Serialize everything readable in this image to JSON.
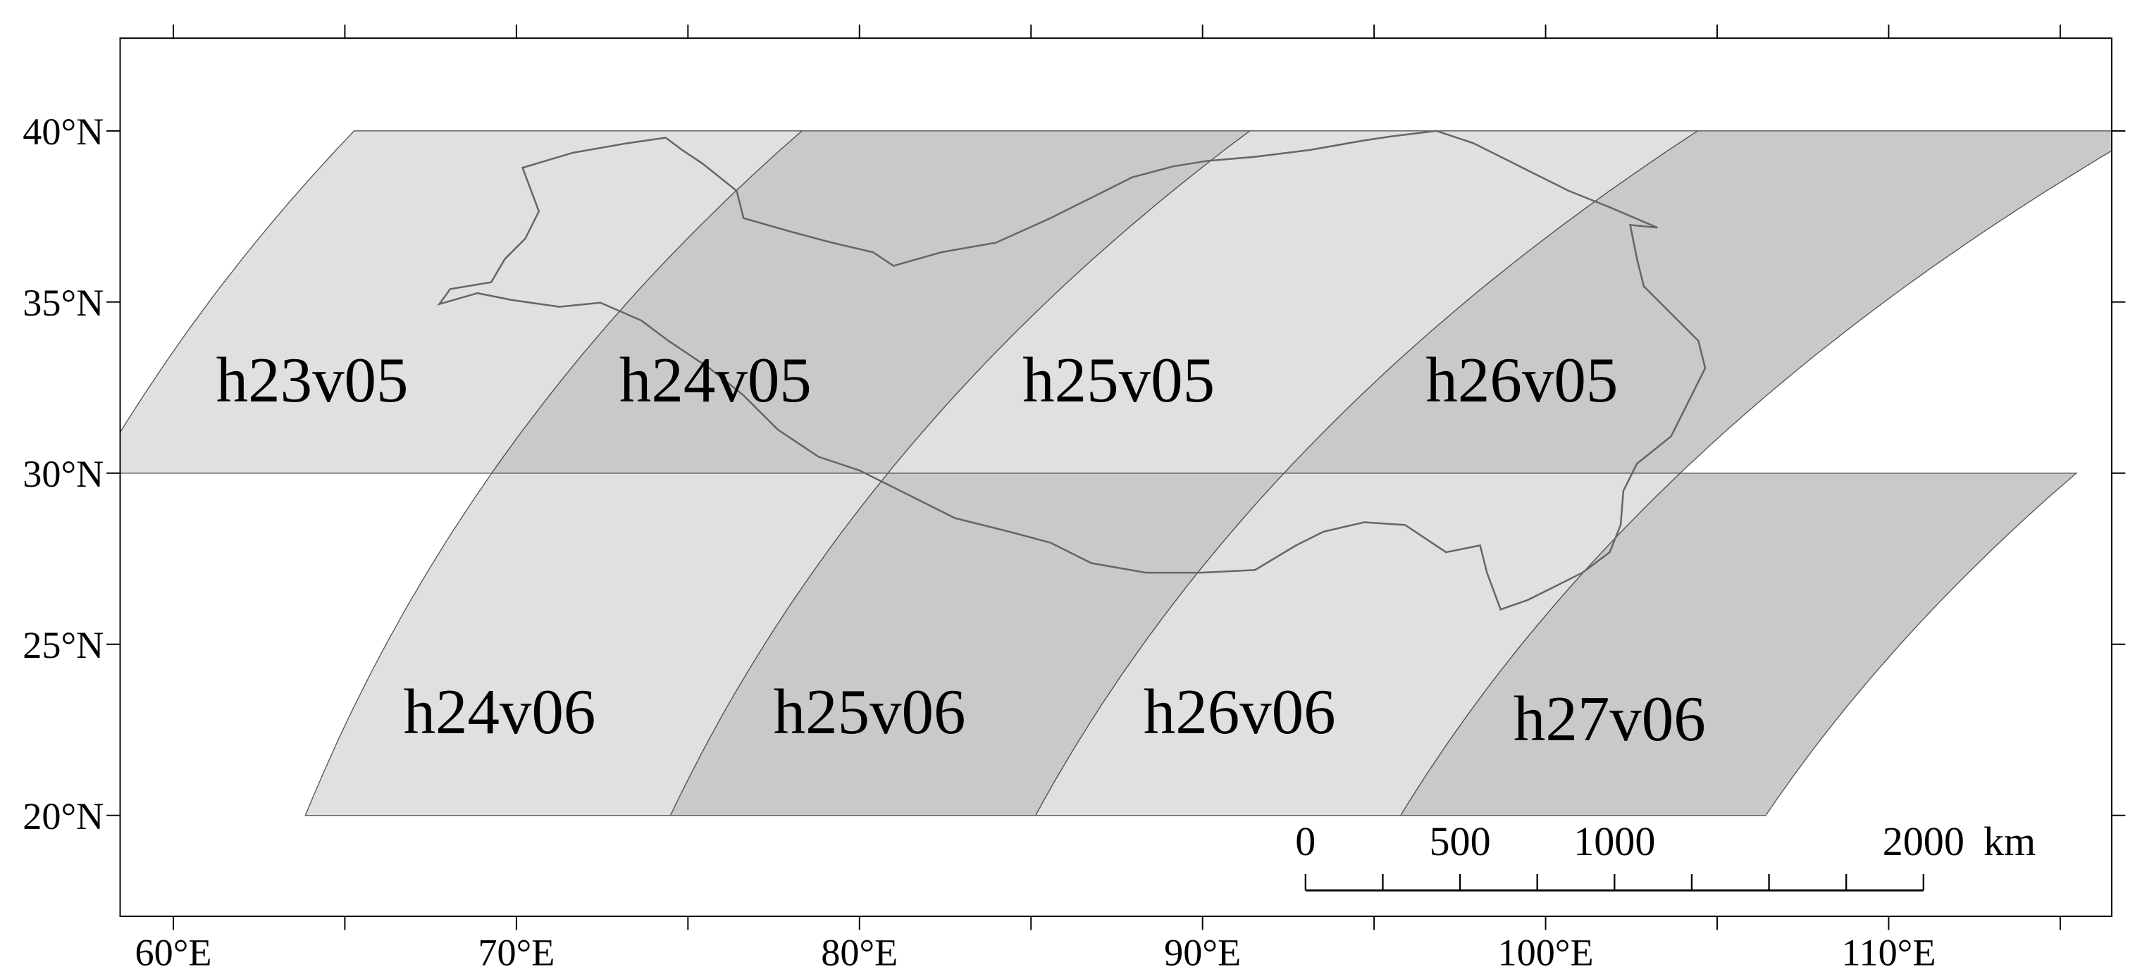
{
  "map": {
    "latitudes": [
      {
        "value": 20,
        "label": "20°N"
      },
      {
        "value": 25,
        "label": "25°N"
      },
      {
        "value": 30,
        "label": "30°N"
      },
      {
        "value": 35,
        "label": "35°N"
      },
      {
        "value": 40,
        "label": "40°N"
      }
    ],
    "longitudes": [
      {
        "value": 60,
        "label": "60°E"
      },
      {
        "value": 70,
        "label": "70°E"
      },
      {
        "value": 80,
        "label": "80°E"
      },
      {
        "value": 90,
        "label": "90°E"
      },
      {
        "value": 100,
        "label": "100°E"
      },
      {
        "value": 110,
        "label": "110°E"
      }
    ],
    "tiles": [
      {
        "label": "h23v05"
      },
      {
        "label": "h24v05"
      },
      {
        "label": "h25v05"
      },
      {
        "label": "h26v05"
      },
      {
        "label": "h24v06"
      },
      {
        "label": "h25v06"
      },
      {
        "label": "h26v06"
      },
      {
        "label": "h27v06"
      }
    ],
    "scale_bar": {
      "ticks": [
        {
          "value": 0,
          "label": "0"
        },
        {
          "value": 500,
          "label": "500"
        },
        {
          "value": 1000,
          "label": "1000"
        },
        {
          "value": 2000,
          "label": "2000"
        }
      ],
      "unit": "km"
    }
  }
}
